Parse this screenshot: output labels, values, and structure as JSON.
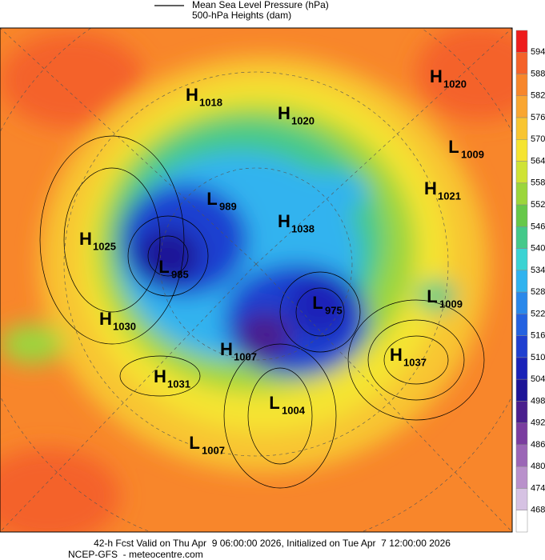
{
  "legend": {
    "line_label": "Mean Sea Level Pressure (hPa)",
    "fill_label": "500-hPa Heights (dam)"
  },
  "colorbar": {
    "ticks": [
      594,
      588,
      582,
      576,
      570,
      564,
      558,
      552,
      546,
      540,
      534,
      528,
      522,
      516,
      510,
      504,
      498,
      492,
      486,
      480,
      474,
      468
    ],
    "colors": [
      "#ee1c1c",
      "#f4622a",
      "#f7862b",
      "#f9a631",
      "#f8c531",
      "#f5e431",
      "#cfe335",
      "#9bd63c",
      "#66c84a",
      "#44c98a",
      "#3bd3d3",
      "#30b3ef",
      "#2a88ea",
      "#2462e0",
      "#1f3fd0",
      "#1a22b8",
      "#1d1497",
      "#4a1f8e",
      "#7a3d9f",
      "#9b66b6",
      "#b991cb",
      "#d6c2e3",
      "#ffffff"
    ]
  },
  "centers": [
    {
      "letter": "H",
      "value": "1018"
    },
    {
      "letter": "H",
      "value": "1020"
    },
    {
      "letter": "H",
      "value": "1020"
    },
    {
      "letter": "L",
      "value": "1009"
    },
    {
      "letter": "H",
      "value": "1021"
    },
    {
      "letter": "L",
      "value": "989"
    },
    {
      "letter": "H",
      "value": "1038"
    },
    {
      "letter": "H",
      "value": "1025"
    },
    {
      "letter": "L",
      "value": "985"
    },
    {
      "letter": "L",
      "value": "975"
    },
    {
      "letter": "L",
      "value": "1009"
    },
    {
      "letter": "H",
      "value": "1030"
    },
    {
      "letter": "H",
      "value": "1007"
    },
    {
      "letter": "H",
      "value": "1037"
    },
    {
      "letter": "H",
      "value": "1031"
    },
    {
      "letter": "L",
      "value": "1004"
    },
    {
      "letter": "L",
      "value": "1007"
    }
  ],
  "footer": {
    "line1": "42-h Fcst Valid on Thu Apr  9 06:00:00 2026, Initialized on Tue Apr  7 12:00:00 2026",
    "line2": "NCEP-GFS  - meteocentre.com"
  }
}
